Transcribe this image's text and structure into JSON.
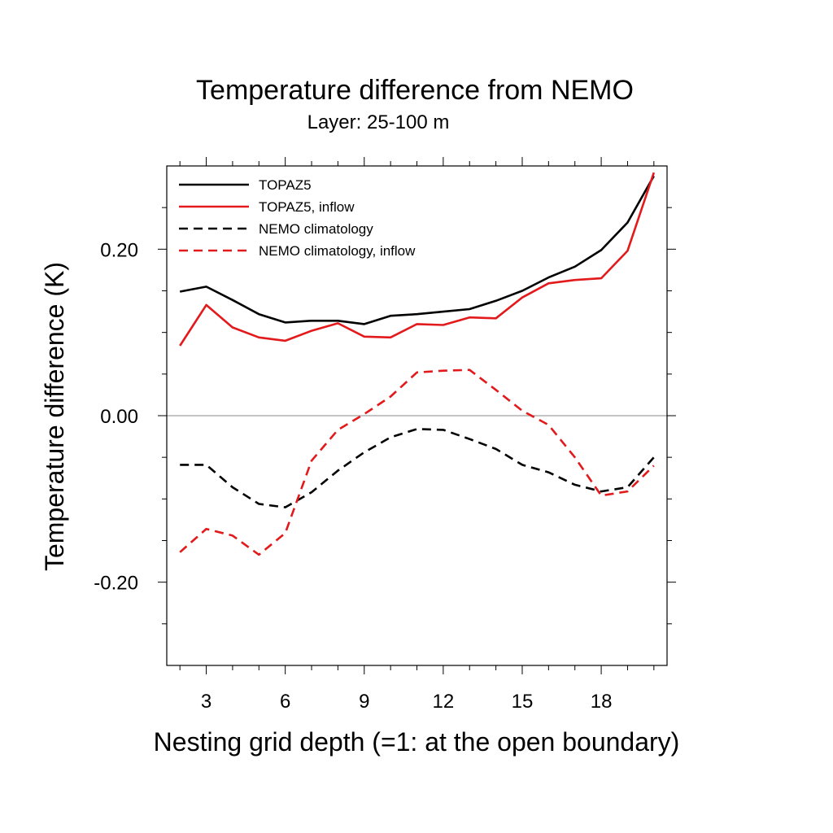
{
  "chart_data": {
    "type": "line",
    "title": "Temperature difference from NEMO",
    "subtitle": "Layer: 25-100 m",
    "xlabel": "Nesting grid depth (=1: at the open boundary)",
    "ylabel": "Temperature difference (K)",
    "xlim": [
      1.5,
      20.5
    ],
    "ylim": [
      -0.3,
      0.3
    ],
    "x_ticks": [
      3,
      6,
      9,
      12,
      15,
      18
    ],
    "x_tick_labels": [
      "3",
      "6",
      "9",
      "12",
      "15",
      "18"
    ],
    "y_ticks": [
      -0.2,
      0.0,
      0.2
    ],
    "y_tick_labels": [
      "-0.20",
      "0.00",
      "0.20"
    ],
    "reference_line_y": 0,
    "grid": false,
    "legend_position": "top-left",
    "x": [
      2,
      3,
      4,
      5,
      6,
      7,
      8,
      9,
      10,
      11,
      12,
      13,
      14,
      15,
      16,
      17,
      18,
      19,
      20
    ],
    "series": [
      {
        "name": "TOPAZ5",
        "color": "#000000",
        "dash": "solid",
        "values": [
          0.149,
          0.155,
          0.139,
          0.122,
          0.112,
          0.114,
          0.114,
          0.11,
          0.12,
          0.122,
          0.125,
          0.128,
          0.138,
          0.15,
          0.166,
          0.179,
          0.199,
          0.232,
          0.288
        ]
      },
      {
        "name": "TOPAZ5, inflow",
        "color": "#e31a1c",
        "dash": "solid",
        "values": [
          0.084,
          0.133,
          0.106,
          0.094,
          0.09,
          0.102,
          0.111,
          0.095,
          0.094,
          0.11,
          0.109,
          0.118,
          0.117,
          0.142,
          0.159,
          0.163,
          0.165,
          0.198,
          0.292
        ]
      },
      {
        "name": "NEMO climatology",
        "color": "#000000",
        "dash": "dashed",
        "values": [
          -0.059,
          -0.059,
          -0.086,
          -0.106,
          -0.11,
          -0.092,
          -0.066,
          -0.044,
          -0.026,
          -0.016,
          -0.017,
          -0.028,
          -0.04,
          -0.059,
          -0.068,
          -0.083,
          -0.091,
          -0.086,
          -0.05
        ]
      },
      {
        "name": "NEMO climatology, inflow",
        "color": "#e31a1c",
        "dash": "dashed",
        "values": [
          -0.164,
          -0.136,
          -0.144,
          -0.167,
          -0.141,
          -0.054,
          -0.017,
          0.002,
          0.023,
          0.052,
          0.054,
          0.055,
          0.031,
          0.006,
          -0.011,
          -0.05,
          -0.096,
          -0.091,
          -0.06
        ]
      }
    ]
  }
}
